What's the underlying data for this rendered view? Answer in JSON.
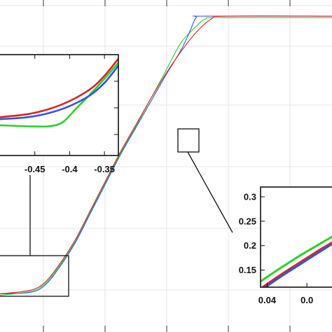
{
  "chart_data": [
    {
      "id": "main",
      "type": "line",
      "title": "",
      "xlabel": "",
      "ylabel": "",
      "grid": true,
      "x_tick_labels": [],
      "y_tick_labels": [],
      "series": [
        {
          "color": "#2ad12a",
          "points": [
            [
              -0.05,
              0.045
            ],
            [
              0.05,
              0.058
            ],
            [
              0.1,
              0.085
            ],
            [
              0.15,
              0.15
            ],
            [
              0.2,
              0.23
            ],
            [
              0.25,
              0.33
            ],
            [
              0.3,
              0.43
            ],
            [
              0.35,
              0.53
            ],
            [
              0.4,
              0.62
            ],
            [
              0.45,
              0.715
            ],
            [
              0.5,
              0.81
            ],
            [
              0.55,
              0.905
            ],
            [
              0.6,
              0.96
            ],
            [
              0.63,
              0.985
            ],
            [
              0.68,
              0.99
            ],
            [
              1.05,
              0.99
            ]
          ]
        },
        {
          "color": "#3355dd",
          "points": [
            [
              -0.05,
              0.05
            ],
            [
              0.05,
              0.055
            ],
            [
              0.1,
              0.08
            ],
            [
              0.15,
              0.145
            ],
            [
              0.2,
              0.225
            ],
            [
              0.25,
              0.325
            ],
            [
              0.3,
              0.425
            ],
            [
              0.35,
              0.525
            ],
            [
              0.4,
              0.615
            ],
            [
              0.45,
              0.705
            ],
            [
              0.5,
              0.795
            ],
            [
              0.55,
              0.88
            ],
            [
              0.58,
              0.945
            ],
            [
              0.6,
              0.99
            ],
            [
              0.63,
              0.995
            ],
            [
              1.05,
              0.995
            ]
          ]
        },
        {
          "color": "#dd2222",
          "points": [
            [
              -0.05,
              0.05
            ],
            [
              0.05,
              0.062
            ],
            [
              0.1,
              0.09
            ],
            [
              0.15,
              0.155
            ],
            [
              0.2,
              0.235
            ],
            [
              0.25,
              0.335
            ],
            [
              0.3,
              0.435
            ],
            [
              0.35,
              0.535
            ],
            [
              0.4,
              0.625
            ],
            [
              0.45,
              0.715
            ],
            [
              0.5,
              0.8
            ],
            [
              0.55,
              0.875
            ],
            [
              0.6,
              0.94
            ],
            [
              0.65,
              0.985
            ],
            [
              0.7,
              0.995
            ],
            [
              1.05,
              0.995
            ]
          ]
        }
      ]
    },
    {
      "id": "inset-left",
      "type": "line",
      "xlim": [
        -0.5,
        -0.33
      ],
      "x_tick_labels": [
        "-0.45",
        "-0.4",
        "-0.35"
      ],
      "y_tick_labels": [],
      "grid": false,
      "series": [
        {
          "color": "#2ad12a",
          "points": [
            [
              -0.5,
              0.3
            ],
            [
              -0.46,
              0.29
            ],
            [
              -0.43,
              0.29
            ],
            [
              -0.41,
              0.33
            ],
            [
              -0.39,
              0.47
            ],
            [
              -0.37,
              0.61
            ],
            [
              -0.35,
              0.76
            ],
            [
              -0.33,
              0.92
            ]
          ]
        },
        {
          "color": "#3355dd",
          "points": [
            [
              -0.5,
              0.36
            ],
            [
              -0.46,
              0.38
            ],
            [
              -0.43,
              0.42
            ],
            [
              -0.4,
              0.49
            ],
            [
              -0.37,
              0.6
            ],
            [
              -0.35,
              0.72
            ],
            [
              -0.33,
              0.89
            ]
          ]
        },
        {
          "color": "#dd2222",
          "points": [
            [
              -0.5,
              0.38
            ],
            [
              -0.46,
              0.41
            ],
            [
              -0.43,
              0.46
            ],
            [
              -0.4,
              0.54
            ],
            [
              -0.37,
              0.66
            ],
            [
              -0.35,
              0.79
            ],
            [
              -0.33,
              0.96
            ]
          ]
        }
      ]
    },
    {
      "id": "inset-right",
      "type": "line",
      "xlim": [
        0.035,
        0.09
      ],
      "ylim": [
        0.115,
        0.32
      ],
      "x_tick_labels": [
        "0.04",
        "0.0"
      ],
      "y_tick_labels": [
        "0.3",
        "0.25",
        "0.2",
        "0.15"
      ],
      "y_ticks": [
        0.3,
        0.25,
        0.2,
        0.15
      ],
      "grid": false,
      "series": [
        {
          "color": "#2ad12a",
          "points": [
            [
              0.035,
              0.127
            ],
            [
              0.05,
              0.154
            ],
            [
              0.065,
              0.18
            ],
            [
              0.08,
              0.204
            ],
            [
              0.09,
              0.22
            ]
          ]
        },
        {
          "color": "#dd2222",
          "points": [
            [
              0.035,
              0.112
            ],
            [
              0.05,
              0.14
            ],
            [
              0.065,
              0.166
            ],
            [
              0.08,
              0.192
            ],
            [
              0.09,
              0.208
            ]
          ]
        },
        {
          "color": "#3355dd",
          "points": [
            [
              0.035,
              0.108
            ],
            [
              0.05,
              0.136
            ],
            [
              0.065,
              0.162
            ],
            [
              0.08,
              0.188
            ],
            [
              0.09,
              0.205
            ]
          ]
        }
      ]
    }
  ]
}
